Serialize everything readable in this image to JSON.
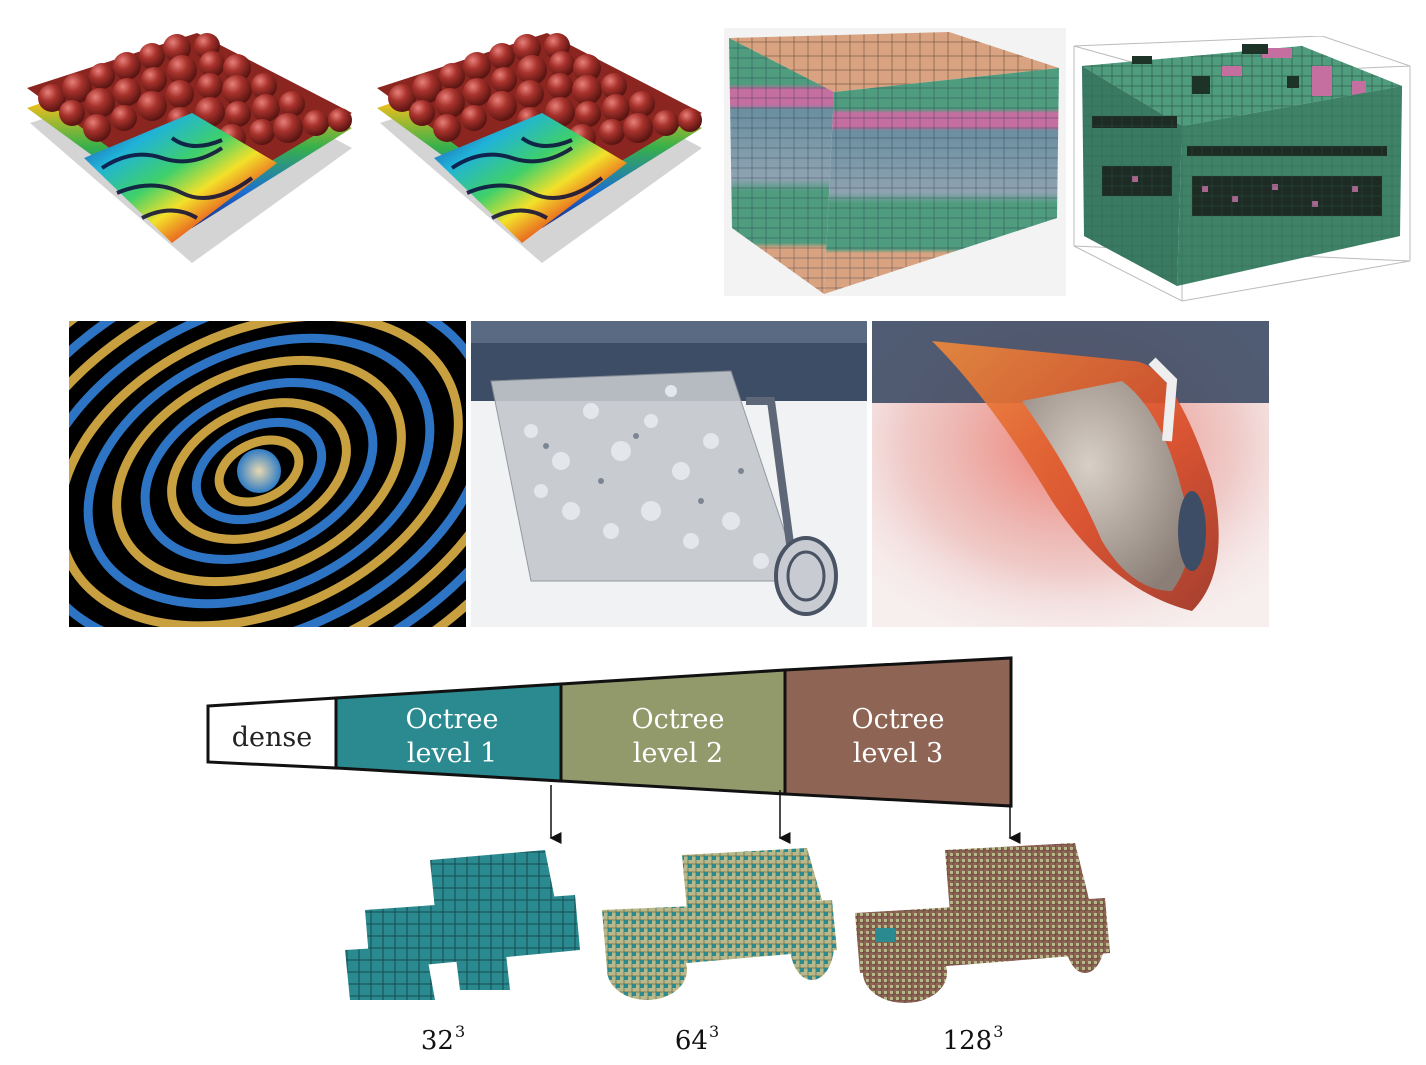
{
  "pyramid": {
    "segments": [
      {
        "line1": "dense",
        "line2": "",
        "color": "#ffffff",
        "text_color": "#111111"
      },
      {
        "line1": "Octree",
        "line2": "level 1",
        "color": "#2a8a8f",
        "text_color": "#ffffff"
      },
      {
        "line1": "Octree",
        "line2": "level 2",
        "color": "#929a6c",
        "text_color": "#ffffff"
      },
      {
        "line1": "Octree",
        "line2": "level 3",
        "color": "#8e6455",
        "text_color": "#ffffff"
      }
    ]
  },
  "captions": [
    {
      "base": "32",
      "exp": "3"
    },
    {
      "base": "64",
      "exp": "3"
    },
    {
      "base": "128",
      "exp": "3"
    }
  ],
  "colors": {
    "teal": "#2a8a8f",
    "olive": "#b8b98a",
    "brown": "#8e6455",
    "red_blob": "#a8322c",
    "slab_top": "#d9a381",
    "slab_green": "#4f9c7e",
    "slab_pink": "#c46fa0"
  }
}
